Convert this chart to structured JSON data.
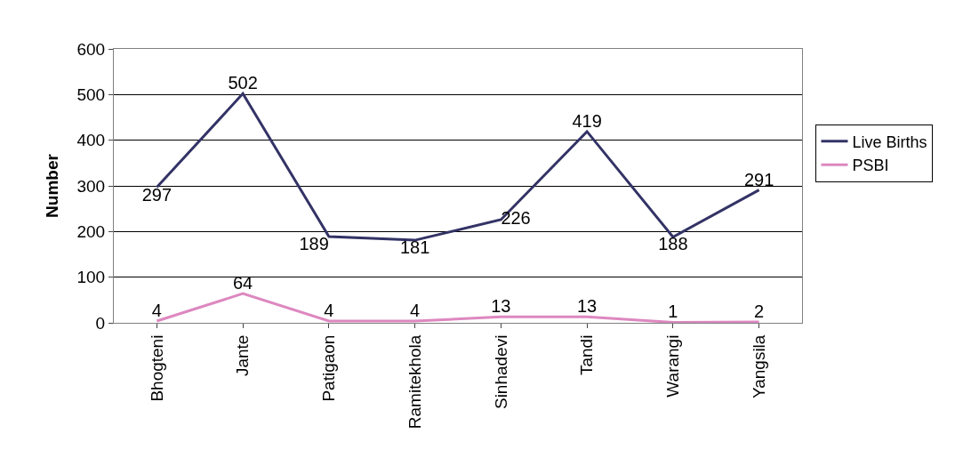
{
  "chart_data": {
    "type": "line",
    "ylabel": "Number",
    "categories": [
      "Bhogteni",
      "Jante",
      "Patigaon",
      "Ramitekhola",
      "Sinhadevi",
      "Tandi",
      "Warangi",
      "Yangsila"
    ],
    "series": [
      {
        "name": "Live Births",
        "color": "#333366",
        "values": [
          297,
          502,
          189,
          181,
          226,
          419,
          188,
          291
        ]
      },
      {
        "name": "PSBI",
        "color": "#dd88c0",
        "values": [
          4,
          64,
          4,
          4,
          13,
          13,
          1,
          2
        ]
      }
    ],
    "ylim": [
      0,
      600
    ],
    "yticks": [
      0,
      100,
      200,
      300,
      400,
      500,
      600
    ],
    "grid": "y",
    "legend": "right",
    "marker": "none",
    "line_style": "solid",
    "data_labels": true
  }
}
